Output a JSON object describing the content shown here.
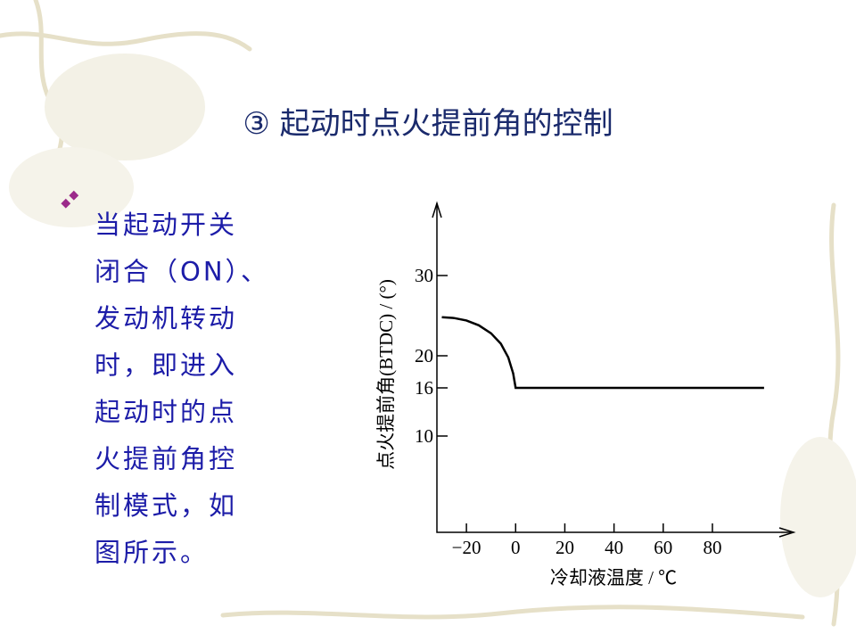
{
  "slide": {
    "title": "③  起动时点火提前角的控制",
    "bullet_lines": [
      "当起动开关",
      "闭合（ON）、",
      "发动机转动",
      "时，即进入",
      "起动时的点",
      "火提前角控",
      "制模式，如",
      "图所示。"
    ]
  },
  "chart_data": {
    "type": "line",
    "x_label": "冷却液温度 / ℃",
    "y_label": "点火提前角(BTDC) / (°)",
    "x": [
      -30,
      -25,
      -20,
      -15,
      -10,
      -6,
      -3,
      -1,
      0,
      20,
      40,
      60,
      80,
      101
    ],
    "series": [
      {
        "color": "#000000",
        "values": [
          24.8,
          24.7,
          24.4,
          23.8,
          22.8,
          21.5,
          19.8,
          17.8,
          16,
          16,
          16,
          16,
          16,
          16
        ]
      }
    ],
    "xlim": [
      -32,
      113
    ],
    "ylim": [
      -2,
      39
    ],
    "xticks": [
      {
        "value": -20,
        "label": "−20"
      },
      0,
      20,
      40,
      60,
      80
    ],
    "yticks": [
      10,
      16,
      20,
      30
    ]
  }
}
